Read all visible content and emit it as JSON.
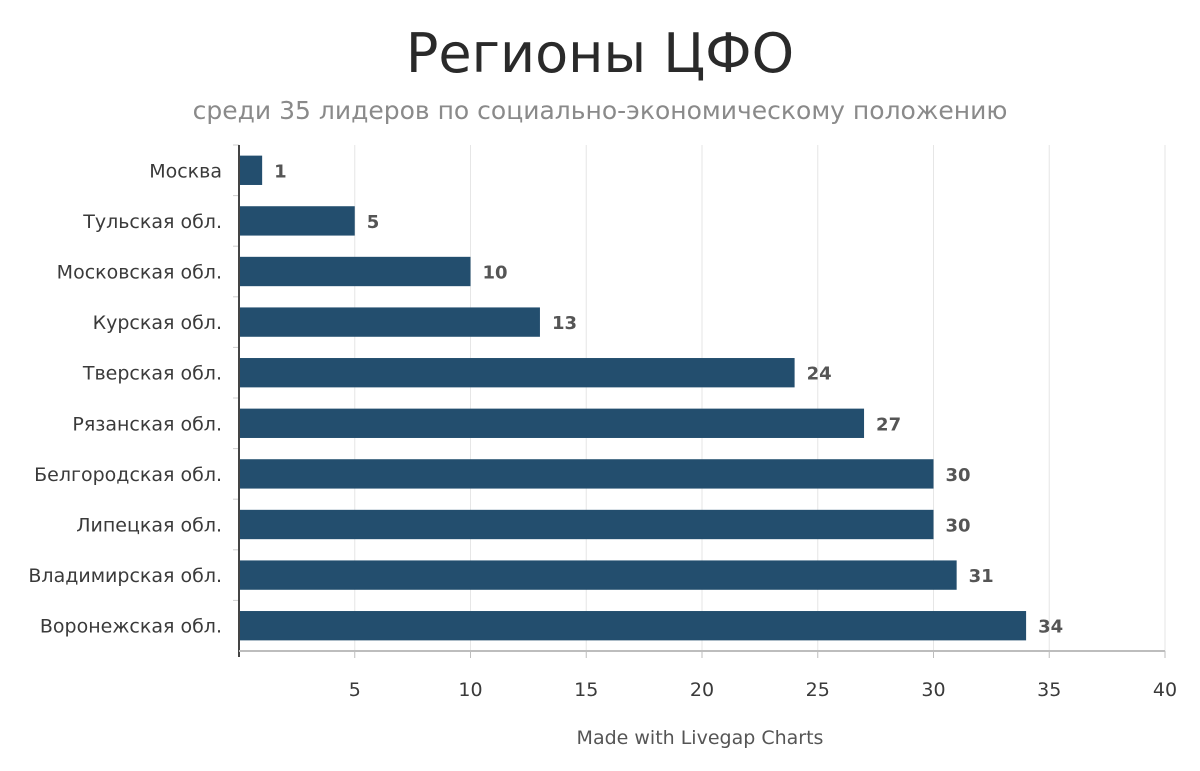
{
  "chart_data": {
    "type": "bar",
    "orientation": "horizontal",
    "title": "Регионы ЦФО",
    "subtitle": "среди 35 лидеров по социально-экономическому положению",
    "categories": [
      "Москва",
      "Тульская обл.",
      "Московская обл.",
      "Курская обл.",
      "Тверская обл.",
      "Рязанская обл.",
      "Белгородская обл.",
      "Липецкая обл.",
      "Владимирская обл.",
      "Воронежская обл."
    ],
    "values": [
      1,
      5,
      10,
      13,
      24,
      27,
      30,
      30,
      31,
      34
    ],
    "xlim": [
      0,
      40
    ],
    "xticks": [
      5,
      10,
      15,
      20,
      25,
      30,
      35,
      40
    ],
    "grid": true,
    "bar_color": "#234e6e",
    "credit": "Made with Livegap Charts"
  }
}
